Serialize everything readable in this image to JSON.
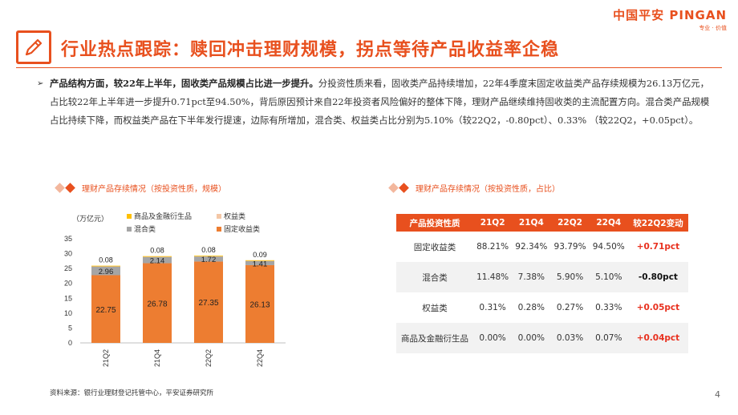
{
  "header": {
    "logo_text": "中国平安 PINGAN",
    "logo_sub": "专业 · 价值",
    "title": "行业热点跟踪：赎回冲击理财规模，拐点等待产品收益率企稳"
  },
  "paragraph": {
    "lead": "产品结构方面，较22年上半年，固收类产品规模占比进一步提升。",
    "body": "分投资性质来看，固收类产品持续增加，22年4季度末固定收益类产品存续规模为26.13万亿元，占比较22年上半年进一步提升0.71pct至94.50%，背后原因预计来自22年投资者风险偏好的整体下降，理财产品继续维持固收类的主流配置方向。混合类产品规模占比持续下降，而权益类产品在下半年发行提速，边际有所增加，混合类、权益类占比分别为5.10%（较22Q2，-0.80pct）、0.33% （较22Q2，+0.05pct）。"
  },
  "sections": {
    "left_title": "理财产品存续情况（按投资性质，规模）",
    "right_title": "理财产品存续情况（按投资性质，占比）"
  },
  "chart_data": {
    "type": "bar",
    "stacked": true,
    "unit_label": "（万亿元）",
    "categories": [
      "21Q2",
      "21Q4",
      "22Q2",
      "22Q4"
    ],
    "ylim": [
      0,
      35
    ],
    "yticks": [
      0,
      5,
      10,
      15,
      20,
      25,
      30,
      35
    ],
    "legend_position": "top",
    "series": [
      {
        "name": "固定收益类",
        "color": "#ed7d31",
        "values": [
          22.75,
          26.78,
          27.35,
          26.13
        ]
      },
      {
        "name": "混合类",
        "color": "#a5a5a5",
        "values": [
          2.96,
          2.14,
          1.72,
          1.41
        ]
      },
      {
        "name": "权益类",
        "color": "#f4c7a6",
        "values": [
          0.15,
          0.15,
          0.15,
          0.15
        ],
        "labels": [
          "",
          "",
          "",
          ""
        ]
      },
      {
        "name": "商品及金融衍生品",
        "color": "#ffc000",
        "values": [
          0.08,
          0.08,
          0.08,
          0.09
        ]
      }
    ],
    "legend": [
      {
        "name": "商品及金融衍生品",
        "color": "#ffc000"
      },
      {
        "name": "权益类",
        "color": "#f4c7a6"
      },
      {
        "name": "混合类",
        "color": "#a5a5a5"
      },
      {
        "name": "固定收益类",
        "color": "#ed7d31"
      }
    ]
  },
  "table": {
    "headers": [
      "产品投资性质",
      "21Q2",
      "21Q4",
      "22Q2",
      "22Q4",
      "较22Q2变动"
    ],
    "rows": [
      {
        "cells": [
          "固定收益类",
          "88.21%",
          "92.34%",
          "93.79%",
          "94.50%",
          "+0.71pct"
        ],
        "dir": "pos"
      },
      {
        "cells": [
          "混合类",
          "11.48%",
          "7.38%",
          "5.90%",
          "5.10%",
          "-0.80pct"
        ],
        "dir": "neg"
      },
      {
        "cells": [
          "权益类",
          "0.31%",
          "0.28%",
          "0.27%",
          "0.33%",
          "+0.05pct"
        ],
        "dir": "pos"
      },
      {
        "cells": [
          "商品及金融衍生品",
          "0.00%",
          "0.00%",
          "0.03%",
          "0.07%",
          "+0.04pct"
        ],
        "dir": "pos"
      }
    ]
  },
  "footer": {
    "source": "资料来源：银行业理财登记托管中心，平安证券研究所",
    "page": "4"
  },
  "colors": {
    "accent": "#e8501e"
  }
}
